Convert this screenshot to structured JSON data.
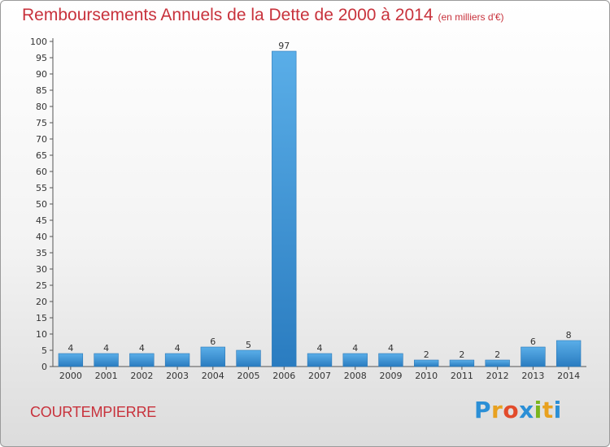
{
  "chart_data": {
    "type": "bar",
    "title": "Remboursements Annuels de la Dette de 2000 à 2014",
    "subtitle": "(en milliers d'€)",
    "categories": [
      "2000",
      "2001",
      "2002",
      "2003",
      "2004",
      "2005",
      "2006",
      "2007",
      "2008",
      "2009",
      "2010",
      "2011",
      "2012",
      "2013",
      "2014"
    ],
    "values": [
      4,
      4,
      4,
      4,
      6,
      5,
      97,
      4,
      4,
      4,
      2,
      2,
      2,
      6,
      8
    ],
    "ylim": [
      0,
      100
    ],
    "ytick_step": 5,
    "grid": false,
    "xlabel": "",
    "ylabel": "",
    "bar_color": "#3f94d9"
  },
  "footer": {
    "commune": "COURTEMPIERRE",
    "logo": {
      "p": "P",
      "r": "r",
      "o": "o",
      "x": "x",
      "i": "i",
      "t": "t",
      "i2": "i"
    }
  }
}
